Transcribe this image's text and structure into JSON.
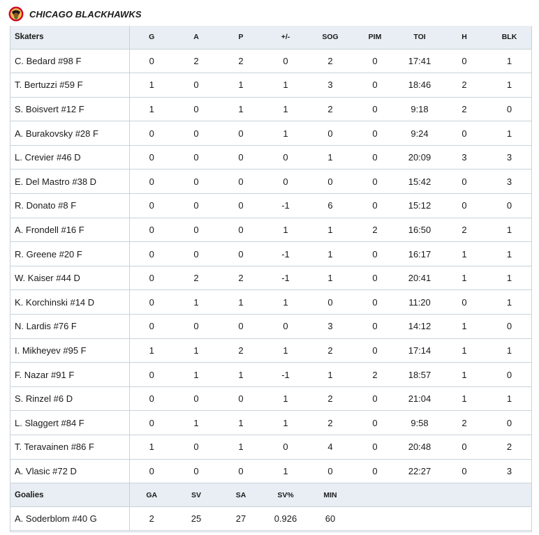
{
  "team": {
    "name": "CHICAGO BLACKHAWKS"
  },
  "skaters": {
    "section_label": "Skaters",
    "columns": [
      "G",
      "A",
      "P",
      "+/-",
      "SOG",
      "PIM",
      "TOI",
      "H",
      "BLK"
    ],
    "rows": [
      {
        "name": "C. Bedard #98 F",
        "stats": [
          "0",
          "2",
          "2",
          "0",
          "2",
          "0",
          "17:41",
          "0",
          "1"
        ]
      },
      {
        "name": "T. Bertuzzi #59 F",
        "stats": [
          "1",
          "0",
          "1",
          "1",
          "3",
          "0",
          "18:46",
          "2",
          "1"
        ]
      },
      {
        "name": "S. Boisvert #12 F",
        "stats": [
          "1",
          "0",
          "1",
          "1",
          "2",
          "0",
          "9:18",
          "2",
          "0"
        ]
      },
      {
        "name": "A. Burakovsky #28 F",
        "stats": [
          "0",
          "0",
          "0",
          "1",
          "0",
          "0",
          "9:24",
          "0",
          "1"
        ]
      },
      {
        "name": "L. Crevier #46 D",
        "stats": [
          "0",
          "0",
          "0",
          "0",
          "1",
          "0",
          "20:09",
          "3",
          "3"
        ]
      },
      {
        "name": "E. Del Mastro #38 D",
        "stats": [
          "0",
          "0",
          "0",
          "0",
          "0",
          "0",
          "15:42",
          "0",
          "3"
        ]
      },
      {
        "name": "R. Donato #8 F",
        "stats": [
          "0",
          "0",
          "0",
          "-1",
          "6",
          "0",
          "15:12",
          "0",
          "0"
        ]
      },
      {
        "name": "A. Frondell #16 F",
        "stats": [
          "0",
          "0",
          "0",
          "1",
          "1",
          "2",
          "16:50",
          "2",
          "1"
        ]
      },
      {
        "name": "R. Greene #20 F",
        "stats": [
          "0",
          "0",
          "0",
          "-1",
          "1",
          "0",
          "16:17",
          "1",
          "1"
        ]
      },
      {
        "name": "W. Kaiser #44 D",
        "stats": [
          "0",
          "2",
          "2",
          "-1",
          "1",
          "0",
          "20:41",
          "1",
          "1"
        ]
      },
      {
        "name": "K. Korchinski #14 D",
        "stats": [
          "0",
          "1",
          "1",
          "1",
          "0",
          "0",
          "11:20",
          "0",
          "1"
        ]
      },
      {
        "name": "N. Lardis #76 F",
        "stats": [
          "0",
          "0",
          "0",
          "0",
          "3",
          "0",
          "14:12",
          "1",
          "0"
        ]
      },
      {
        "name": "I. Mikheyev #95 F",
        "stats": [
          "1",
          "1",
          "2",
          "1",
          "2",
          "0",
          "17:14",
          "1",
          "1"
        ]
      },
      {
        "name": "F. Nazar #91 F",
        "stats": [
          "0",
          "1",
          "1",
          "-1",
          "1",
          "2",
          "18:57",
          "1",
          "0"
        ]
      },
      {
        "name": "S. Rinzel #6 D",
        "stats": [
          "0",
          "0",
          "0",
          "1",
          "2",
          "0",
          "21:04",
          "1",
          "1"
        ]
      },
      {
        "name": "L. Slaggert #84 F",
        "stats": [
          "0",
          "1",
          "1",
          "1",
          "2",
          "0",
          "9:58",
          "2",
          "0"
        ]
      },
      {
        "name": "T. Teravainen #86 F",
        "stats": [
          "1",
          "0",
          "1",
          "0",
          "4",
          "0",
          "20:48",
          "0",
          "2"
        ]
      },
      {
        "name": "A. Vlasic #72 D",
        "stats": [
          "0",
          "0",
          "0",
          "1",
          "0",
          "0",
          "22:27",
          "0",
          "3"
        ]
      }
    ]
  },
  "goalies": {
    "section_label": "Goalies",
    "columns": [
      "GA",
      "SV",
      "SA",
      "SV%",
      "MIN"
    ],
    "rows": [
      {
        "name": "A. Soderblom #40 G",
        "stats": [
          "2",
          "25",
          "27",
          "0.926",
          "60"
        ]
      }
    ]
  },
  "colors": {
    "header_bg": "#e8eef3",
    "border": "#c9d2d9",
    "logo_red": "#cf0a2c"
  },
  "icons": {
    "team_logo": "blackhawks-logo-icon"
  }
}
